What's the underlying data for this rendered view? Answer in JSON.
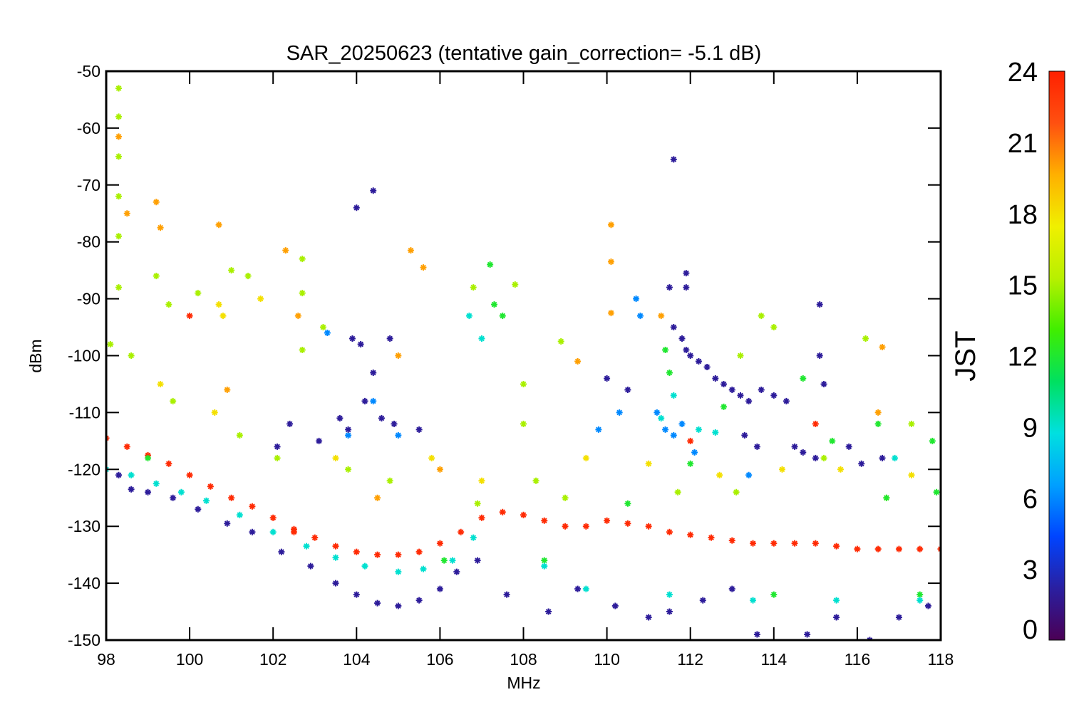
{
  "chart_data": {
    "type": "scatter",
    "title": "SAR_20250623 (tentative gain_correction= -5.1 dB)",
    "xlabel": "MHz",
    "ylabel": "dBm",
    "xlim": [
      98,
      118
    ],
    "ylim": [
      -150,
      -50
    ],
    "xticks": [
      "98",
      "100",
      "102",
      "104",
      "106",
      "108",
      "110",
      "112",
      "114",
      "116",
      "118"
    ],
    "yticks": [
      "-50",
      "-60",
      "-70",
      "-80",
      "-90",
      "-100",
      "-110",
      "-120",
      "-130",
      "-140",
      "-150"
    ],
    "marker": "asterisk",
    "grid": false,
    "colorbar": {
      "label": "JST",
      "range": [
        0,
        24
      ],
      "ticks": [
        "0",
        "3",
        "6",
        "9",
        "12",
        "15",
        "18",
        "21",
        "24"
      ],
      "colormap": [
        "#4b0055",
        "#2a1fa0",
        "#0044ff",
        "#00a0ff",
        "#00e0e0",
        "#00e060",
        "#40ee00",
        "#b8f000",
        "#f0f000",
        "#ffb000",
        "#ff5010",
        "#ff2000"
      ]
    },
    "series": [
      {
        "jst": 23.5,
        "points": [
          [
            98.0,
            -114.5
          ],
          [
            98.5,
            -116
          ],
          [
            99.0,
            -117.5
          ],
          [
            99.5,
            -119
          ],
          [
            100.0,
            -121
          ],
          [
            100.5,
            -123
          ],
          [
            101.0,
            -125
          ],
          [
            101.5,
            -126.5
          ],
          [
            102.0,
            -128.5
          ],
          [
            102.5,
            -130.5
          ],
          [
            103.0,
            -132
          ],
          [
            103.5,
            -133.5
          ],
          [
            104.0,
            -134.5
          ],
          [
            104.5,
            -135
          ],
          [
            105.0,
            -135
          ],
          [
            105.5,
            -134.5
          ],
          [
            106.0,
            -133
          ],
          [
            106.5,
            -131
          ],
          [
            107.0,
            -128.5
          ],
          [
            107.5,
            -127.5
          ],
          [
            108.0,
            -128
          ],
          [
            108.5,
            -129
          ],
          [
            109.0,
            -130
          ],
          [
            109.5,
            -130
          ],
          [
            110.0,
            -129
          ],
          [
            110.5,
            -129.5
          ],
          [
            111.0,
            -130
          ],
          [
            111.5,
            -131
          ],
          [
            112.0,
            -131.5
          ],
          [
            112.5,
            -132
          ],
          [
            113.0,
            -132.5
          ],
          [
            113.5,
            -133
          ],
          [
            114.0,
            -133
          ],
          [
            114.5,
            -133
          ],
          [
            115.0,
            -133
          ],
          [
            115.5,
            -133.5
          ],
          [
            116.0,
            -134
          ],
          [
            116.5,
            -134
          ],
          [
            117.0,
            -134
          ],
          [
            117.5,
            -134
          ],
          [
            118.0,
            -134
          ],
          [
            100.0,
            -93
          ],
          [
            102.5,
            -131
          ],
          [
            115.0,
            -112
          ],
          [
            112.0,
            -115
          ]
        ]
      },
      {
        "jst": 20,
        "points": [
          [
            98.3,
            -61.5
          ],
          [
            98.5,
            -75
          ],
          [
            99.2,
            -73
          ],
          [
            99.3,
            -77.5
          ],
          [
            100.7,
            -77
          ],
          [
            102.3,
            -81.5
          ],
          [
            102.6,
            -93
          ],
          [
            105.0,
            -100
          ],
          [
            105.3,
            -81.5
          ],
          [
            105.6,
            -84.5
          ],
          [
            109.3,
            -101
          ],
          [
            110.1,
            -77
          ],
          [
            110.1,
            -83.5
          ],
          [
            110.1,
            -92.5
          ],
          [
            111.3,
            -93
          ],
          [
            116.6,
            -98.5
          ],
          [
            116.5,
            -110
          ],
          [
            100.9,
            -106
          ],
          [
            106.0,
            -120
          ],
          [
            104.5,
            -125
          ]
        ]
      },
      {
        "jst": 18,
        "points": [
          [
            100.7,
            -91
          ],
          [
            100.8,
            -93
          ],
          [
            101.7,
            -90
          ],
          [
            99.3,
            -105
          ],
          [
            100.6,
            -110
          ],
          [
            103.5,
            -118
          ],
          [
            105.8,
            -118
          ],
          [
            107.0,
            -122
          ],
          [
            109.5,
            -118
          ],
          [
            111.0,
            -119
          ],
          [
            112.7,
            -121
          ],
          [
            114.2,
            -120
          ],
          [
            115.6,
            -120
          ],
          [
            117.3,
            -121
          ]
        ]
      },
      {
        "jst": 15,
        "points": [
          [
            98.3,
            -53
          ],
          [
            98.3,
            -58
          ],
          [
            98.3,
            -65
          ],
          [
            98.3,
            -72
          ],
          [
            98.3,
            -79
          ],
          [
            98.3,
            -88
          ],
          [
            99.2,
            -86
          ],
          [
            99.5,
            -91
          ],
          [
            100.2,
            -89
          ],
          [
            101.0,
            -85
          ],
          [
            101.4,
            -86
          ],
          [
            102.7,
            -83
          ],
          [
            102.7,
            -89
          ],
          [
            102.7,
            -99
          ],
          [
            103.2,
            -95
          ],
          [
            106.8,
            -88
          ],
          [
            107.8,
            -87.5
          ],
          [
            108.0,
            -105
          ],
          [
            108.0,
            -112
          ],
          [
            108.9,
            -97.5
          ],
          [
            113.7,
            -93
          ],
          [
            114.0,
            -95
          ],
          [
            113.2,
            -100
          ],
          [
            116.2,
            -97
          ],
          [
            117.3,
            -112
          ],
          [
            98.1,
            -98
          ],
          [
            98.6,
            -100
          ],
          [
            99.6,
            -108
          ],
          [
            101.2,
            -114
          ],
          [
            102.1,
            -118
          ],
          [
            103.8,
            -120
          ],
          [
            104.8,
            -122
          ],
          [
            106.9,
            -126
          ],
          [
            108.3,
            -122
          ],
          [
            109.0,
            -125
          ],
          [
            111.7,
            -124
          ],
          [
            113.1,
            -124
          ],
          [
            115.2,
            -118
          ],
          [
            116.7,
            -125
          ]
        ]
      },
      {
        "jst": 12,
        "points": [
          [
            107.2,
            -84
          ],
          [
            107.3,
            -91
          ],
          [
            107.5,
            -93
          ],
          [
            111.4,
            -99
          ],
          [
            111.5,
            -103
          ],
          [
            112.8,
            -109
          ],
          [
            114.7,
            -104
          ],
          [
            115.4,
            -115
          ],
          [
            116.5,
            -112
          ],
          [
            116.7,
            -125
          ],
          [
            117.8,
            -115
          ],
          [
            117.9,
            -124
          ],
          [
            99.0,
            -118
          ],
          [
            106.1,
            -136
          ],
          [
            108.5,
            -136
          ],
          [
            110.5,
            -126
          ],
          [
            112.0,
            -119
          ],
          [
            114.0,
            -142
          ],
          [
            117.5,
            -142
          ]
        ]
      },
      {
        "jst": 9,
        "points": [
          [
            106.7,
            -93
          ],
          [
            107.0,
            -97
          ],
          [
            111.3,
            -111
          ],
          [
            111.6,
            -107
          ],
          [
            112.2,
            -113
          ],
          [
            112.6,
            -113.5
          ],
          [
            116.9,
            -118
          ],
          [
            98.0,
            -120
          ],
          [
            98.6,
            -121
          ],
          [
            99.2,
            -122.5
          ],
          [
            99.8,
            -124
          ],
          [
            100.4,
            -125.5
          ],
          [
            101.2,
            -128
          ],
          [
            102.0,
            -131
          ],
          [
            102.8,
            -133.5
          ],
          [
            103.5,
            -135.5
          ],
          [
            104.2,
            -137
          ],
          [
            105.0,
            -138
          ],
          [
            105.6,
            -137.5
          ],
          [
            106.3,
            -136
          ],
          [
            106.8,
            -132
          ],
          [
            108.5,
            -137
          ],
          [
            109.5,
            -141
          ],
          [
            111.5,
            -142
          ],
          [
            113.5,
            -143
          ],
          [
            115.5,
            -143
          ],
          [
            117.5,
            -143
          ]
        ]
      },
      {
        "jst": 6,
        "points": [
          [
            110.7,
            -90
          ],
          [
            110.8,
            -93
          ],
          [
            111.2,
            -110
          ],
          [
            111.4,
            -113
          ],
          [
            111.6,
            -114
          ],
          [
            111.8,
            -112
          ],
          [
            112.1,
            -117
          ],
          [
            113.4,
            -121
          ],
          [
            103.3,
            -96
          ],
          [
            103.8,
            -114
          ],
          [
            104.4,
            -108
          ],
          [
            105.0,
            -114
          ],
          [
            109.8,
            -113
          ],
          [
            110.3,
            -110
          ]
        ]
      },
      {
        "jst": 2,
        "points": [
          [
            104.4,
            -71
          ],
          [
            104.0,
            -74
          ],
          [
            111.6,
            -65.5
          ],
          [
            111.9,
            -85.5
          ],
          [
            111.5,
            -88
          ],
          [
            111.9,
            -88
          ],
          [
            115.1,
            -91
          ],
          [
            115.1,
            -100
          ],
          [
            115.2,
            -105
          ],
          [
            104.4,
            -103
          ],
          [
            104.2,
            -108
          ],
          [
            104.6,
            -111
          ],
          [
            103.8,
            -113
          ],
          [
            104.9,
            -112
          ],
          [
            105.5,
            -113
          ],
          [
            102.4,
            -112
          ],
          [
            102.1,
            -116
          ],
          [
            103.1,
            -115
          ],
          [
            103.6,
            -111
          ],
          [
            103.9,
            -97
          ],
          [
            104.1,
            -98
          ],
          [
            104.8,
            -97
          ],
          [
            111.6,
            -95
          ],
          [
            111.8,
            -97
          ],
          [
            111.9,
            -99
          ],
          [
            112.0,
            -100
          ],
          [
            112.2,
            -101
          ],
          [
            112.4,
            -102
          ],
          [
            112.6,
            -104
          ],
          [
            112.8,
            -105
          ],
          [
            113.0,
            -106
          ],
          [
            113.2,
            -107
          ],
          [
            113.4,
            -108
          ],
          [
            113.7,
            -106
          ],
          [
            114.0,
            -107
          ],
          [
            114.3,
            -108
          ],
          [
            114.5,
            -116
          ],
          [
            114.7,
            -117
          ],
          [
            115.0,
            -118
          ],
          [
            115.8,
            -116
          ],
          [
            116.1,
            -119
          ],
          [
            116.6,
            -118
          ],
          [
            113.3,
            -114
          ],
          [
            113.6,
            -116
          ],
          [
            110.5,
            -106
          ],
          [
            110.0,
            -104
          ],
          [
            98.3,
            -121
          ],
          [
            98.6,
            -123.5
          ],
          [
            99.0,
            -124
          ],
          [
            99.6,
            -125
          ],
          [
            100.2,
            -127
          ],
          [
            100.9,
            -129.5
          ],
          [
            101.5,
            -131
          ],
          [
            102.2,
            -134.5
          ],
          [
            102.9,
            -137
          ],
          [
            103.5,
            -140
          ],
          [
            104.0,
            -142
          ],
          [
            104.5,
            -143.5
          ],
          [
            105.0,
            -144
          ],
          [
            105.5,
            -143
          ],
          [
            106.0,
            -141
          ],
          [
            106.4,
            -138
          ],
          [
            106.9,
            -136
          ],
          [
            107.6,
            -142
          ],
          [
            108.6,
            -145
          ],
          [
            109.3,
            -141
          ],
          [
            110.2,
            -144
          ],
          [
            111.0,
            -146
          ],
          [
            111.5,
            -145
          ],
          [
            112.3,
            -143
          ],
          [
            113.0,
            -141
          ],
          [
            113.6,
            -149
          ],
          [
            114.1,
            -150.5
          ],
          [
            114.8,
            -149
          ],
          [
            115.5,
            -146
          ],
          [
            116.3,
            -150
          ],
          [
            117.0,
            -146
          ],
          [
            117.7,
            -144
          ]
        ]
      }
    ]
  }
}
